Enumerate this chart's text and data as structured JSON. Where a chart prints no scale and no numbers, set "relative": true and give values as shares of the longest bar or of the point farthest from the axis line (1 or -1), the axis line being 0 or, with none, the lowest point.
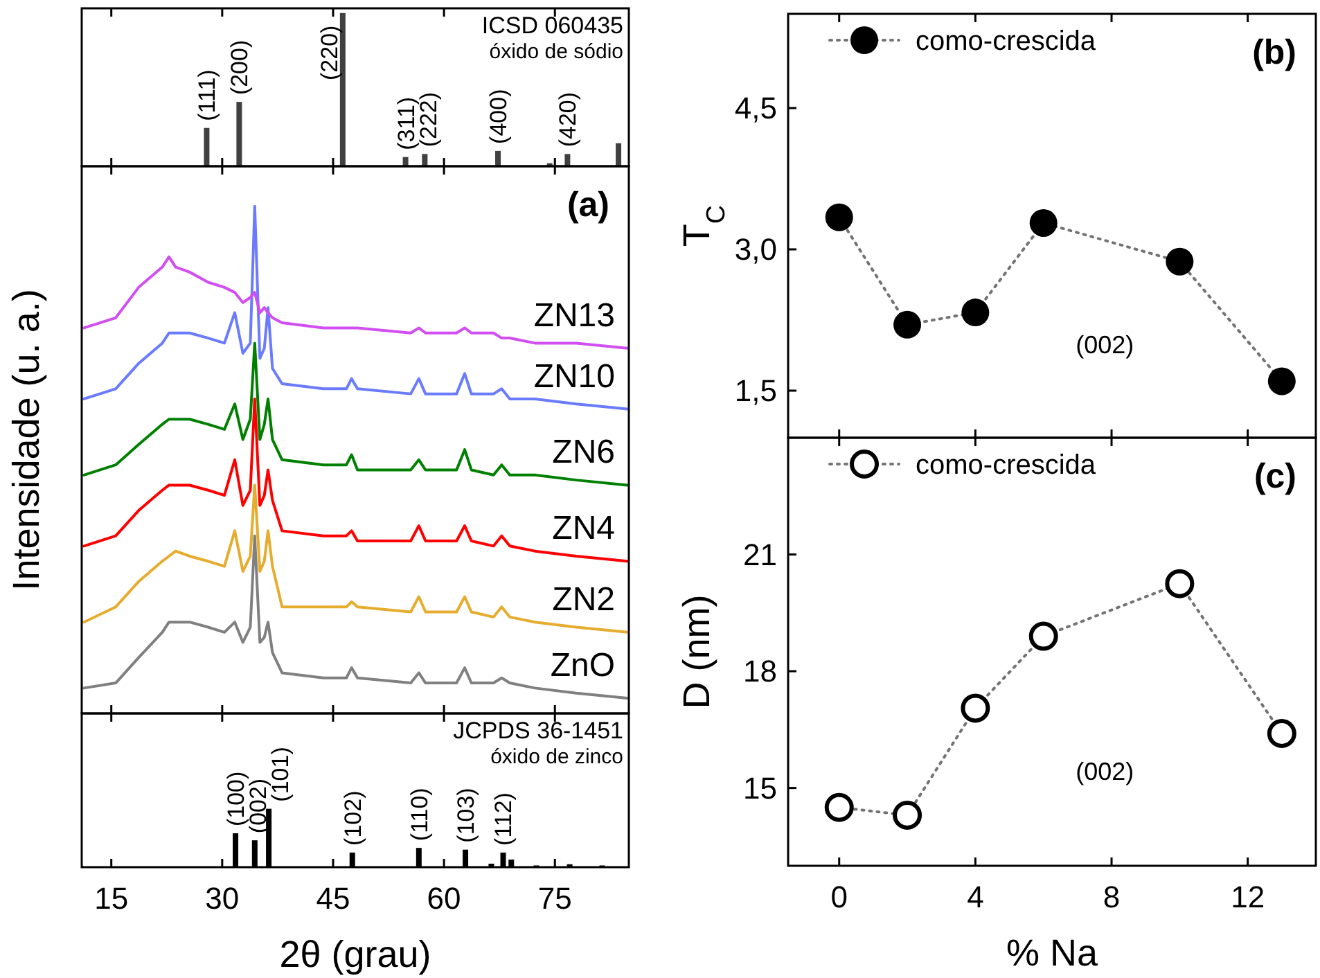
{
  "chart_data": [
    {
      "type": "bar",
      "relative": true,
      "title": "ICSD 060435",
      "subtitle": "óxido de sódio",
      "tick_labels": false,
      "xlim": [
        11,
        85
      ],
      "xticks": [
        15,
        30,
        45,
        60,
        75
      ],
      "x": [
        27.9,
        32.3,
        46.3,
        54.8,
        57.4,
        67.3,
        74.3,
        76.7,
        83.6
      ],
      "values": [
        0.25,
        0.42,
        1,
        0.06,
        0.08,
        0.1,
        0.02,
        0.08,
        0.15
      ],
      "color": "#404040",
      "annotations": [
        {
          "text": "(111)",
          "x": 27.9,
          "y": 0.25
        },
        {
          "text": "(200)",
          "x": 32.3,
          "y": 0.42
        },
        {
          "text": "(220)",
          "x": 46.3,
          "y": 1
        },
        {
          "text": "(311)",
          "x": 54.8,
          "y": 0.06
        },
        {
          "text": "(222)",
          "x": 57.4,
          "y": 0.08
        },
        {
          "text": "(400)",
          "x": 67.3,
          "y": 0.1
        },
        {
          "text": "(420)",
          "x": 76.7,
          "y": 0.08
        }
      ]
    },
    {
      "type": "line",
      "relative": true,
      "ylabel": "Intensidade (u. a.)",
      "tick_labels": false,
      "xlim": [
        11,
        85
      ],
      "xticks": [
        15,
        30,
        45,
        60,
        75
      ],
      "annotations": [
        "(a)"
      ],
      "x": [
        11.3,
        15.6,
        18.7,
        21.9,
        22.8,
        23.7,
        25.6,
        28.1,
        30.3,
        31.7,
        32.8,
        33.8,
        34.4,
        35.1,
        35.7,
        36.2,
        36.8,
        38.1,
        43.7,
        46.8,
        47.5,
        48.3,
        55.5,
        56.6,
        57.5,
        61.7,
        62.8,
        63.7,
        66.7,
        67.8,
        68.9,
        72.3,
        77.9,
        84.8
      ],
      "series": [
        {
          "name": "ZnO",
          "color": "#808080",
          "values": [
            0.05,
            0.06,
            0.11,
            0.16,
            0.18,
            0.18,
            0.18,
            0.17,
            0.16,
            0.18,
            0.14,
            0.17,
            0.35,
            0.14,
            0.15,
            0.18,
            0.12,
            0.08,
            0.07,
            0.07,
            0.09,
            0.07,
            0.06,
            0.08,
            0.06,
            0.06,
            0.09,
            0.06,
            0.06,
            0.07,
            0.06,
            0.05,
            0.04,
            0.03
          ]
        },
        {
          "name": "ZN2",
          "color": "#e6ac2e",
          "values": [
            0.18,
            0.21,
            0.26,
            0.3,
            0.31,
            0.32,
            0.31,
            0.3,
            0.29,
            0.36,
            0.28,
            0.31,
            0.45,
            0.28,
            0.3,
            0.36,
            0.29,
            0.21,
            0.21,
            0.21,
            0.22,
            0.21,
            0.2,
            0.23,
            0.2,
            0.2,
            0.23,
            0.2,
            0.19,
            0.21,
            0.19,
            0.18,
            0.17,
            0.16
          ]
        },
        {
          "name": "ZN4",
          "color": "#ff0000",
          "values": [
            0.33,
            0.35,
            0.4,
            0.44,
            0.45,
            0.45,
            0.45,
            0.44,
            0.43,
            0.5,
            0.41,
            0.44,
            0.62,
            0.41,
            0.43,
            0.48,
            0.42,
            0.36,
            0.35,
            0.35,
            0.36,
            0.34,
            0.34,
            0.37,
            0.34,
            0.34,
            0.37,
            0.34,
            0.33,
            0.35,
            0.33,
            0.32,
            0.31,
            0.3
          ]
        },
        {
          "name": "ZN6",
          "color": "#008000",
          "values": [
            0.47,
            0.49,
            0.53,
            0.57,
            0.58,
            0.58,
            0.58,
            0.57,
            0.56,
            0.61,
            0.54,
            0.58,
            0.73,
            0.54,
            0.57,
            0.62,
            0.54,
            0.5,
            0.49,
            0.49,
            0.51,
            0.48,
            0.48,
            0.5,
            0.48,
            0.48,
            0.52,
            0.48,
            0.47,
            0.49,
            0.47,
            0.47,
            0.46,
            0.45
          ]
        },
        {
          "name": "ZN10",
          "color": "#6a7bff",
          "values": [
            0.62,
            0.64,
            0.69,
            0.73,
            0.75,
            0.75,
            0.75,
            0.74,
            0.73,
            0.79,
            0.71,
            0.73,
            1.0,
            0.7,
            0.72,
            0.8,
            0.68,
            0.65,
            0.64,
            0.64,
            0.66,
            0.64,
            0.63,
            0.66,
            0.63,
            0.63,
            0.67,
            0.63,
            0.63,
            0.64,
            0.62,
            0.62,
            0.61,
            0.6
          ]
        },
        {
          "name": "ZN13",
          "color": "#d14ef0",
          "values": [
            0.76,
            0.78,
            0.84,
            0.88,
            0.9,
            0.88,
            0.87,
            0.85,
            0.84,
            0.83,
            0.81,
            0.82,
            0.83,
            0.79,
            0.8,
            0.79,
            0.78,
            0.77,
            0.76,
            0.76,
            0.76,
            0.76,
            0.75,
            0.76,
            0.75,
            0.75,
            0.76,
            0.75,
            0.75,
            0.74,
            0.74,
            0.73,
            0.73,
            0.72
          ]
        }
      ]
    },
    {
      "type": "bar",
      "relative": true,
      "title": "JCPDS 36-1451",
      "subtitle": "óxido de zinco",
      "xlabel": "2θ (grau)",
      "tick_labels": "x",
      "xlim": [
        11,
        85
      ],
      "xticks": [
        15,
        30,
        45,
        60,
        75
      ],
      "x": [
        31.8,
        34.4,
        36.3,
        47.6,
        56.6,
        62.9,
        66.4,
        68.0,
        69.1,
        72.5,
        77.0,
        81.4
      ],
      "values": [
        0.58,
        0.46,
        1,
        0.25,
        0.33,
        0.3,
        0.06,
        0.25,
        0.13,
        0.03,
        0.05,
        0.03
      ],
      "color": "#000000",
      "annotations": [
        {
          "text": "(100)",
          "x": 31.8,
          "y": 0.58
        },
        {
          "text": "(002)",
          "x": 34.4,
          "y": 0.46
        },
        {
          "text": "(101)",
          "x": 36.3,
          "y": 1
        },
        {
          "text": "(102)",
          "x": 47.6,
          "y": 0.25
        },
        {
          "text": "(110)",
          "x": 56.6,
          "y": 0.33
        },
        {
          "text": "(103)",
          "x": 62.9,
          "y": 0.3
        },
        {
          "text": "(112)",
          "x": 68.0,
          "y": 0.25
        }
      ]
    },
    {
      "type": "line",
      "ylabel": "T$_{C}$",
      "tick_labels": "y",
      "marker": "circle",
      "line_style": "dotted",
      "legend": "top left",
      "xlim": [
        -1.5,
        14
      ],
      "xticks": [
        0,
        4,
        8,
        12
      ],
      "ylim": [
        1.0,
        5.5
      ],
      "yticks": [
        {
          "value": 1.5,
          "label": "1,5"
        },
        {
          "value": 3.0,
          "label": "3,0"
        },
        {
          "value": 4.5,
          "label": "4,5"
        }
      ],
      "annotations": [
        "(b)",
        "(002)"
      ],
      "x": [
        0,
        2,
        4,
        6,
        10,
        13
      ],
      "series": [
        {
          "name": "como-crescida",
          "color": "#000000",
          "values": [
            3.34,
            2.2,
            2.33,
            3.28,
            2.87,
            1.6
          ]
        }
      ]
    },
    {
      "type": "line",
      "xlabel": "% Na",
      "ylabel": "D (nm)",
      "marker": "circle",
      "line_style": "dotted",
      "legend": "top left",
      "xlim": [
        -1.5,
        14
      ],
      "xticks": [
        0,
        4,
        8,
        12
      ],
      "ylim": [
        13,
        24
      ],
      "yticks": [
        15,
        18,
        21
      ],
      "annotations": [
        "(c)",
        "(002)"
      ],
      "x": [
        0,
        2,
        4,
        6,
        10,
        13
      ],
      "series": [
        {
          "name": "como-crescida",
          "color": "#000000",
          "values": [
            14.5,
            14.3,
            17.05,
            18.9,
            20.25,
            16.4
          ]
        }
      ]
    }
  ]
}
